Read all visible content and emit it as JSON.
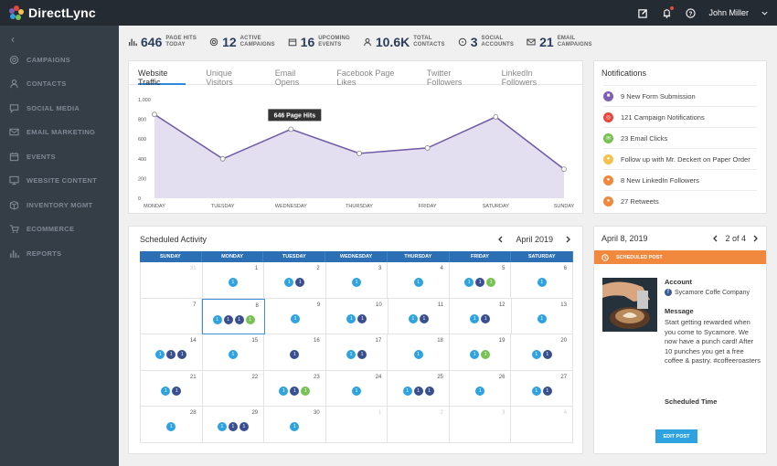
{
  "app": {
    "name": "DirectLync"
  },
  "user": {
    "name": "John Miller"
  },
  "colors": {
    "accent": "#2e8ce0",
    "sidebar": "#353d47",
    "topbar": "#252b32",
    "orange": "#f0883e",
    "chart_line": "#6f5aa5",
    "chart_fill": "#e3def0"
  },
  "sidebar": {
    "items": [
      {
        "label": "CAMPAIGNS",
        "icon": "target-icon"
      },
      {
        "label": "CONTACTS",
        "icon": "user-icon"
      },
      {
        "label": "SOCIAL MEDIA",
        "icon": "chat-icon"
      },
      {
        "label": "EMAIL MARKETING",
        "icon": "mail-icon"
      },
      {
        "label": "EVENTS",
        "icon": "calendar-icon"
      },
      {
        "label": "WEBSITE CONTENT",
        "icon": "monitor-icon"
      },
      {
        "label": "INVENTORY MGMT",
        "icon": "box-icon"
      },
      {
        "label": "ECOMMERCE",
        "icon": "cart-icon"
      },
      {
        "label": "REPORTS",
        "icon": "bars-icon"
      }
    ]
  },
  "stats": [
    {
      "value": "646",
      "line1": "PAGE HITS",
      "line2": "TODAY"
    },
    {
      "value": "12",
      "line1": "ACTIVE",
      "line2": "CAMPAIGNS"
    },
    {
      "value": "16",
      "line1": "UPCOMING",
      "line2": "EVENTS"
    },
    {
      "value": "10.6K",
      "line1": "TOTAL",
      "line2": "CONTACTS"
    },
    {
      "value": "3",
      "line1": "SOCIAL",
      "line2": "ACCOUNTS"
    },
    {
      "value": "21",
      "line1": "EMAIL",
      "line2": "CAMPAIGNS"
    }
  ],
  "traffic": {
    "tabs": [
      "Website Traffic",
      "Unique Visitors",
      "Email Opens",
      "Facebook Page Likes",
      "Twitter Followers",
      "LinkedIn Followers"
    ],
    "tooltip": "646 Page Hits"
  },
  "chart_data": {
    "type": "area",
    "categories": [
      "MONDAY",
      "TUESDAY",
      "WEDNESDAY",
      "THURSDAY",
      "FRIDAY",
      "SATURDAY",
      "SUNDAY"
    ],
    "values": [
      850,
      400,
      700,
      455,
      510,
      825,
      295
    ],
    "ylim": [
      0,
      1000
    ],
    "yticks": [
      "0",
      "200",
      "400",
      "600",
      "800",
      "1,000"
    ],
    "grid": false,
    "legend": "none"
  },
  "notifications": {
    "title": "Notifications",
    "items": [
      {
        "text": "9 New Form Submission",
        "color": "#7e5fb0"
      },
      {
        "text": "121 Campaign Notifications",
        "color": "#e8453c"
      },
      {
        "text": "23 Email Clicks",
        "color": "#78c154"
      },
      {
        "text": "Follow up with Mr. Deckert on Paper Order",
        "color": "#f3c24f"
      },
      {
        "text": "8 New LinkedIn Followers",
        "color": "#f0883e"
      },
      {
        "text": "27 Retweets",
        "color": "#f0883e"
      }
    ]
  },
  "schedule": {
    "title": "Scheduled Activity",
    "month": "April 2019",
    "weekdays": [
      "SUNDAY",
      "MONDAY",
      "TUESDAY",
      "WEDNESDAY",
      "THURSDAY",
      "FRIDAY",
      "SATURDAY"
    ],
    "weeks": [
      [
        {
          "d": "31",
          "m": true,
          "c": []
        },
        {
          "d": "1",
          "c": [
            "b"
          ]
        },
        {
          "d": "2",
          "c": [
            "b",
            "n"
          ]
        },
        {
          "d": "3",
          "c": [
            "b"
          ]
        },
        {
          "d": "4",
          "c": [
            "b"
          ]
        },
        {
          "d": "5",
          "c": [
            "b",
            "n",
            "g"
          ]
        },
        {
          "d": "6",
          "c": [
            "b"
          ]
        }
      ],
      [
        {
          "d": "7",
          "c": []
        },
        {
          "d": "8",
          "sel": true,
          "c": [
            "b",
            "n",
            "n",
            "g"
          ]
        },
        {
          "d": "9",
          "c": [
            "b"
          ]
        },
        {
          "d": "10",
          "c": [
            "b",
            "n"
          ]
        },
        {
          "d": "11",
          "c": [
            "b",
            "n"
          ]
        },
        {
          "d": "12",
          "c": [
            "b",
            "n"
          ]
        },
        {
          "d": "13",
          "c": [
            "b"
          ]
        }
      ],
      [
        {
          "d": "14",
          "c": [
            "b",
            "n",
            "n"
          ]
        },
        {
          "d": "15",
          "c": [
            "b"
          ]
        },
        {
          "d": "16",
          "c": [
            "n"
          ]
        },
        {
          "d": "17",
          "c": [
            "b",
            "n"
          ]
        },
        {
          "d": "18",
          "c": [
            "b"
          ]
        },
        {
          "d": "19",
          "c": [
            "b",
            "g"
          ]
        },
        {
          "d": "20",
          "c": [
            "b",
            "n"
          ]
        }
      ],
      [
        {
          "d": "21",
          "c": [
            "b",
            "n"
          ]
        },
        {
          "d": "22",
          "c": []
        },
        {
          "d": "23",
          "c": [
            "b",
            "n",
            "g"
          ]
        },
        {
          "d": "24",
          "c": [
            "b"
          ]
        },
        {
          "d": "25",
          "c": [
            "b",
            "n",
            "n"
          ]
        },
        {
          "d": "26",
          "c": [
            "b"
          ]
        },
        {
          "d": "27",
          "c": [
            "b",
            "n"
          ]
        }
      ],
      [
        {
          "d": "28",
          "c": [
            "b"
          ]
        },
        {
          "d": "29",
          "c": [
            "b",
            "n",
            "n"
          ]
        },
        {
          "d": "30",
          "c": [
            "b"
          ]
        },
        {
          "d": "1",
          "m": true,
          "c": []
        },
        {
          "d": "2",
          "m": true,
          "c": []
        },
        {
          "d": "3",
          "m": true,
          "c": []
        },
        {
          "d": "4",
          "m": true,
          "c": []
        }
      ]
    ]
  },
  "post": {
    "date": "April 8, 2019",
    "pager": "2 of 4",
    "banner": "SCHEDULED POST",
    "account_label": "Account",
    "account_name": "Sycamore Coffe Company",
    "message_label": "Message",
    "message": "Start getting rewarded when you come to Sycamore. We now have a punch card! After 10 punches you get a free coffee & pastry. #coffeeroasters",
    "time_label": "Scheduled Time",
    "edit_label": "EDIT POST"
  }
}
